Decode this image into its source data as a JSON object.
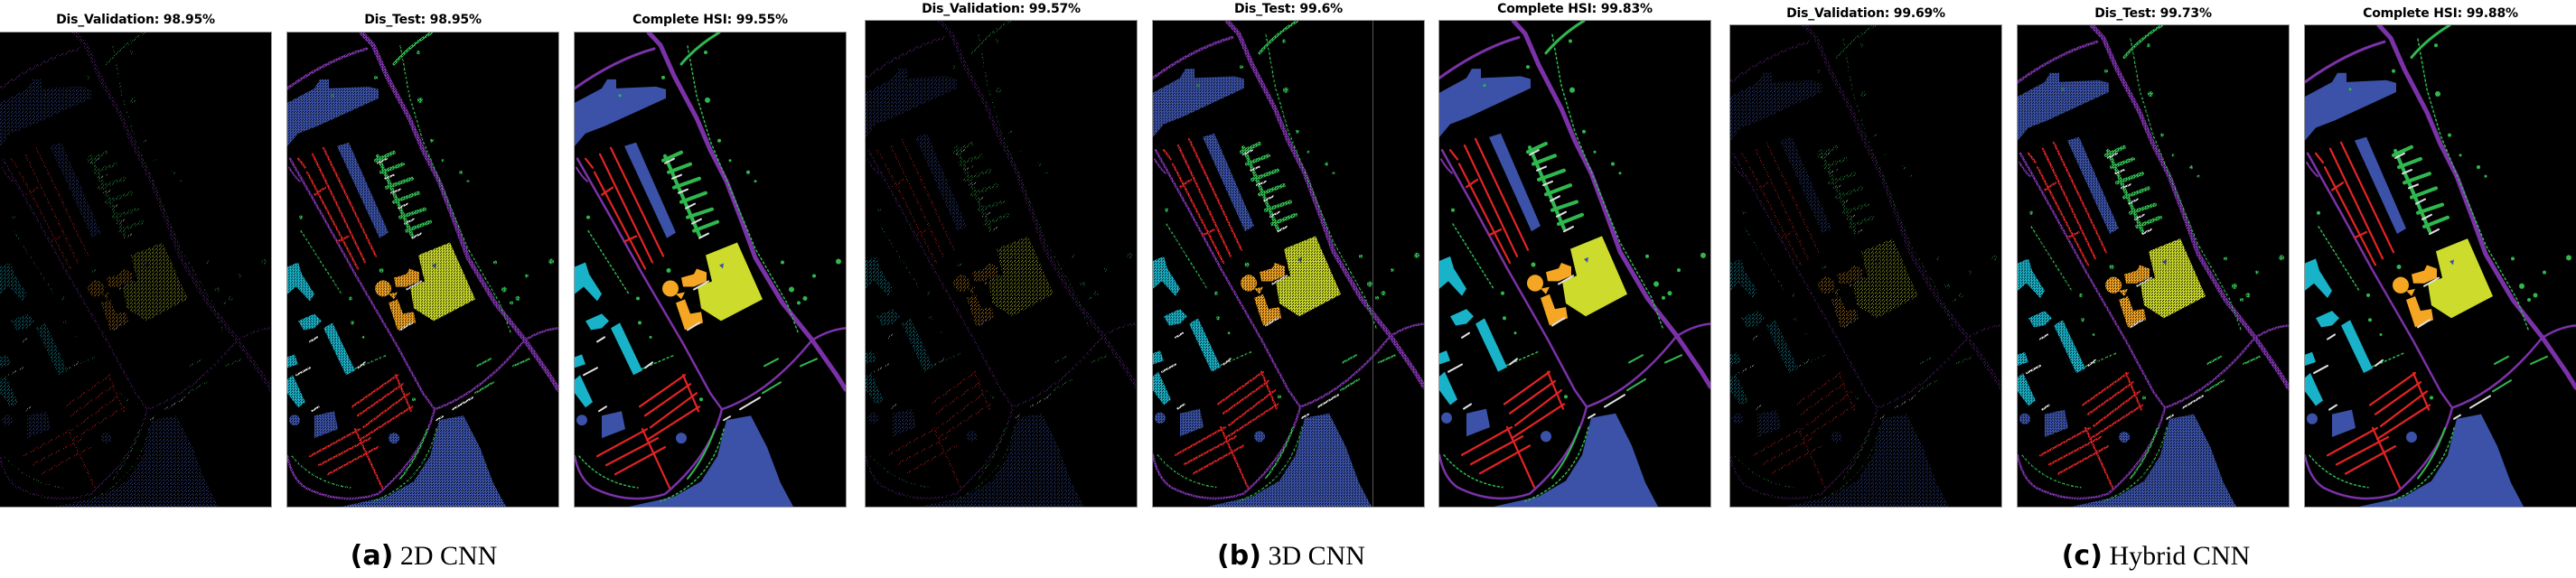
{
  "figure": {
    "groups": [
      {
        "label": "(a)",
        "name": "2D CNN",
        "panels": [
          {
            "title": "Dis_Validation: 98.95%",
            "kind": "validation"
          },
          {
            "title": "Dis_Test: 98.95%",
            "kind": "test"
          },
          {
            "title": "Complete HSI: 99.55%",
            "kind": "complete"
          }
        ]
      },
      {
        "label": "(b)",
        "name": "3D CNN",
        "panels": [
          {
            "title": "Dis_Validation: 99.57%",
            "kind": "validation"
          },
          {
            "title": "Dis_Test: 99.6%",
            "kind": "test"
          },
          {
            "title": "Complete HSI: 99.83%",
            "kind": "complete"
          }
        ]
      },
      {
        "label": "(c)",
        "name": "Hybrid CNN",
        "panels": [
          {
            "title": "Dis_Validation: 99.69%",
            "kind": "validation"
          },
          {
            "title": "Dis_Test: 99.73%",
            "kind": "test"
          },
          {
            "title": "Complete HSI: 99.88%",
            "kind": "complete"
          }
        ]
      }
    ],
    "class_colors": {
      "asphalt": "#7b32a8",
      "meadows": "#3b52a8",
      "gravel": "#e0e0e0",
      "trees": "#2fb84e",
      "bare_soil": "#cddc2c",
      "bitumen": "#f5a623",
      "bricks": "#e32424",
      "metal_sheets": "#19b3c9",
      "background": "#000000"
    }
  }
}
